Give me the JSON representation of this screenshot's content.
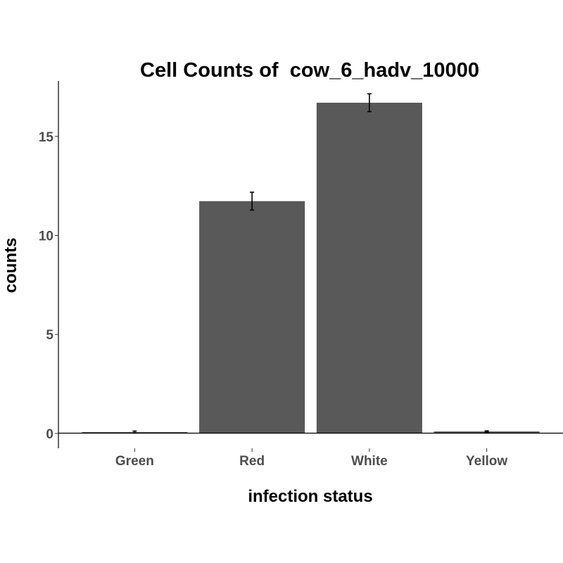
{
  "chart_data": {
    "type": "bar",
    "title": "Cell Counts of  cow_6_hadv_10000",
    "xlabel": "infection status",
    "ylabel": "counts",
    "categories": [
      "Green",
      "Red",
      "White",
      "Yellow"
    ],
    "values": [
      0.07,
      11.73,
      16.7,
      0.1
    ],
    "error": [
      0.05,
      0.45,
      0.45,
      0.03
    ],
    "ylim": [
      -0.75,
      17.8
    ],
    "yticks": [
      0,
      5,
      10,
      15
    ],
    "ytick_labels": [
      "0",
      "5",
      "10",
      "15"
    ],
    "bar_color": "#595959",
    "grid": false,
    "legend": "none"
  }
}
